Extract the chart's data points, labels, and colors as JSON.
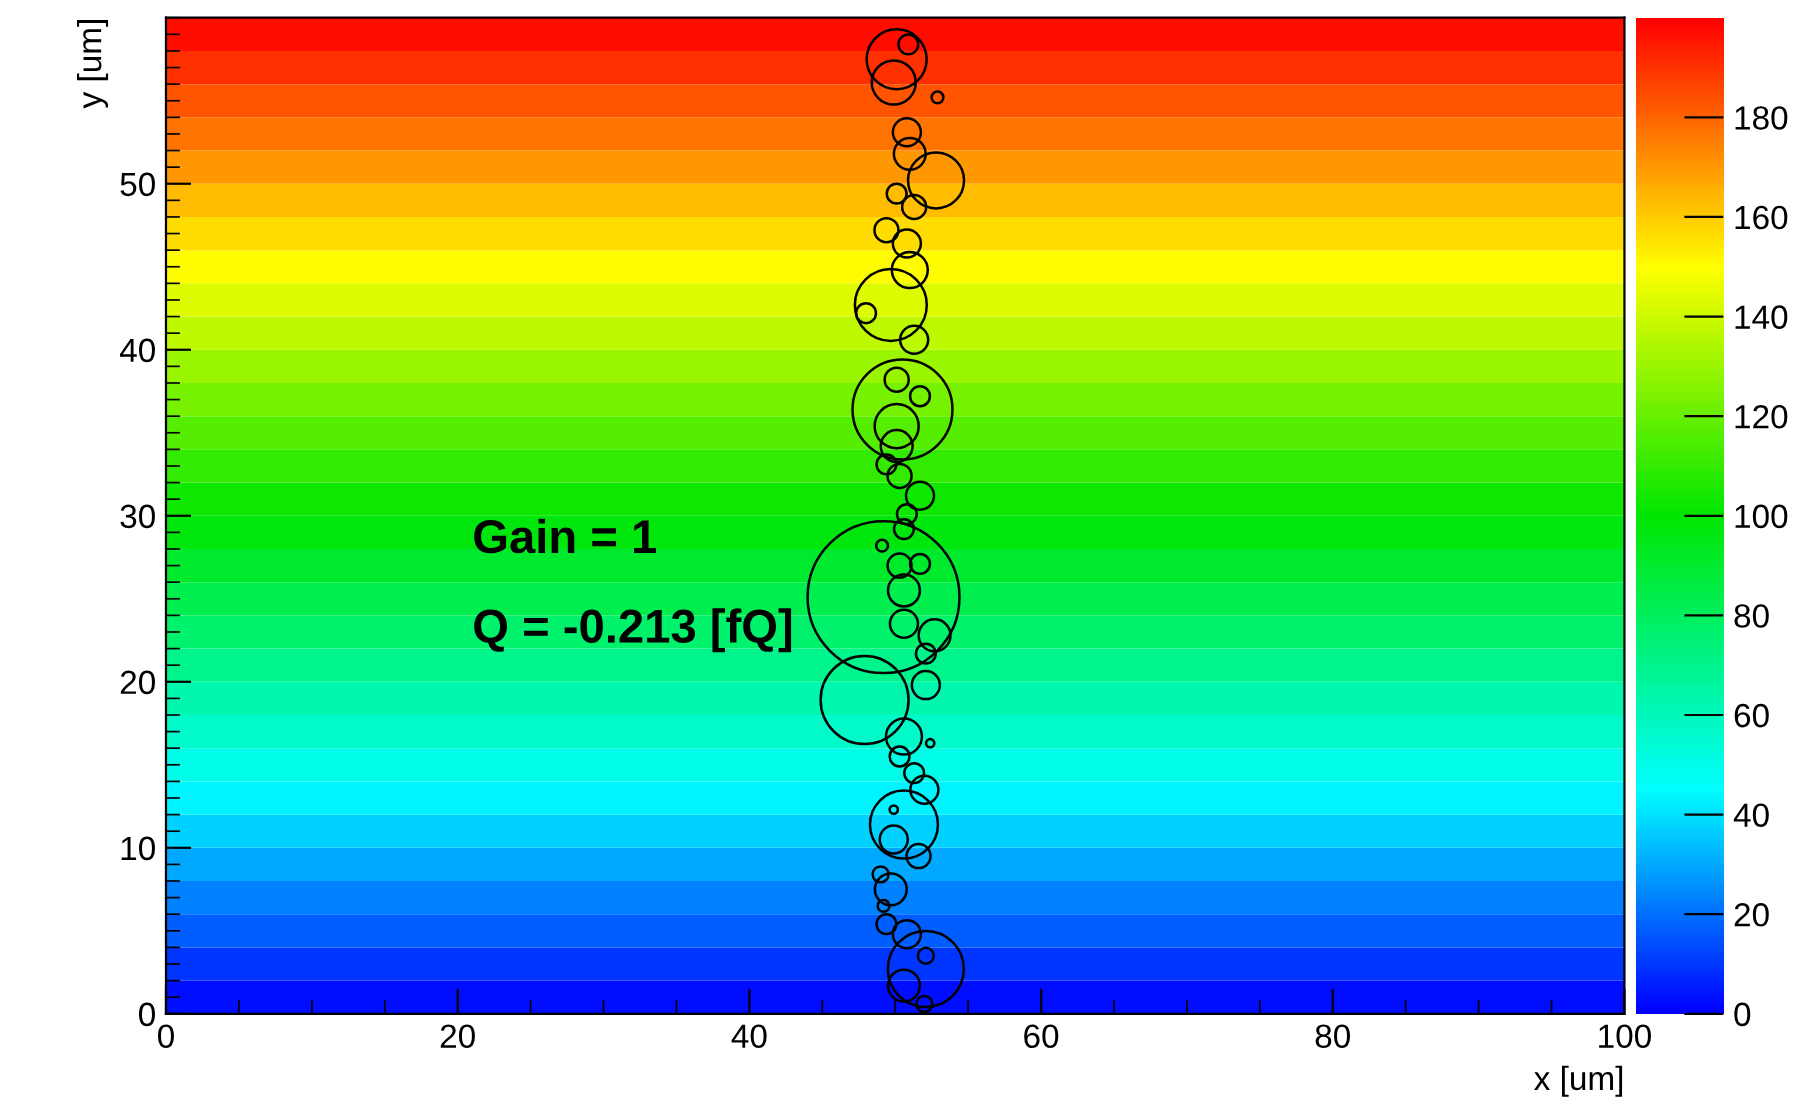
{
  "chart_data": {
    "type": "heatmap",
    "xlabel": "x [um]",
    "ylabel": "y [um]",
    "xlim": [
      0,
      100
    ],
    "ylim": [
      0,
      60
    ],
    "xticks": [
      0,
      20,
      40,
      60,
      80,
      100
    ],
    "yticks": [
      0,
      10,
      20,
      30,
      40,
      50
    ],
    "clim": [
      0,
      200
    ],
    "cticks": [
      0,
      20,
      40,
      60,
      80,
      100,
      120,
      140,
      160,
      180
    ],
    "cells": [
      [
        197
      ],
      [
        190
      ],
      [
        183
      ],
      [
        177
      ],
      [
        170
      ],
      [
        163
      ],
      [
        157
      ],
      [
        150
      ],
      [
        143
      ],
      [
        137
      ],
      [
        130
      ],
      [
        123
      ],
      [
        117
      ],
      [
        110
      ],
      [
        103
      ],
      [
        97
      ],
      [
        90
      ],
      [
        83
      ],
      [
        77
      ],
      [
        70
      ],
      [
        63
      ],
      [
        57
      ],
      [
        50
      ],
      [
        43
      ],
      [
        37
      ],
      [
        30
      ],
      [
        23
      ],
      [
        17
      ],
      [
        10
      ],
      [
        3
      ]
    ],
    "annotations": [
      "Gain = 1",
      "Q = -0.213 [fQ]"
    ],
    "grid": false,
    "series": [
      {
        "type": "bubble",
        "color": "#000000",
        "x": [
          50.1,
          49.9,
          50.9,
          52.9,
          50.8,
          51.0,
          52.8,
          50.1,
          51.3,
          49.4,
          50.8,
          51.0,
          49.7,
          48.0,
          51.3,
          50.5,
          50.1,
          51.7,
          50.1,
          50.1,
          49.4,
          50.3,
          51.7,
          50.8,
          50.6,
          49.2,
          49.1,
          50.3,
          51.7,
          50.6,
          50.6,
          52.7,
          52.1,
          47.9,
          52.1,
          50.6,
          52.4,
          50.3,
          51.3,
          52.0,
          50.6,
          49.9,
          49.9,
          51.6,
          49.0,
          49.7,
          49.2,
          49.4,
          50.8,
          52.1,
          52.1,
          50.6,
          52.0
        ],
        "values": [
          57.5,
          56.1,
          58.4,
          55.2,
          53.1,
          51.8,
          50.2,
          49.4,
          48.6,
          47.2,
          46.4,
          44.8,
          42.7,
          42.2,
          40.6,
          36.4,
          38.2,
          37.2,
          35.4,
          34.2,
          33.1,
          32.4,
          31.2,
          30.1,
          29.2,
          25.1,
          28.2,
          27.0,
          27.1,
          25.5,
          23.5,
          22.8,
          21.7,
          18.9,
          19.8,
          16.7,
          16.3,
          15.5,
          14.5,
          13.5,
          11.4,
          12.3,
          10.5,
          9.5,
          8.4,
          7.5,
          6.5,
          5.4,
          4.8,
          2.7,
          3.5,
          1.7,
          0.6
        ],
        "sizes": [
          0.156,
          0.084,
          0.017,
          0.006,
          0.034,
          0.044,
          0.136,
          0.017,
          0.025,
          0.025,
          0.034,
          0.056,
          0.224,
          0.017,
          0.034,
          0.433,
          0.025,
          0.017,
          0.084,
          0.044,
          0.017,
          0.025,
          0.034,
          0.017,
          0.017,
          1,
          0.006,
          0.025,
          0.017,
          0.044,
          0.034,
          0.044,
          0.017,
          0.335,
          0.034,
          0.056,
          0.003,
          0.017,
          0.017,
          0.034,
          0.2,
          0.003,
          0.034,
          0.025,
          0.011,
          0.044,
          0.006,
          0.017,
          0.034,
          0.25,
          0.011,
          0.044,
          0.011
        ]
      }
    ]
  }
}
